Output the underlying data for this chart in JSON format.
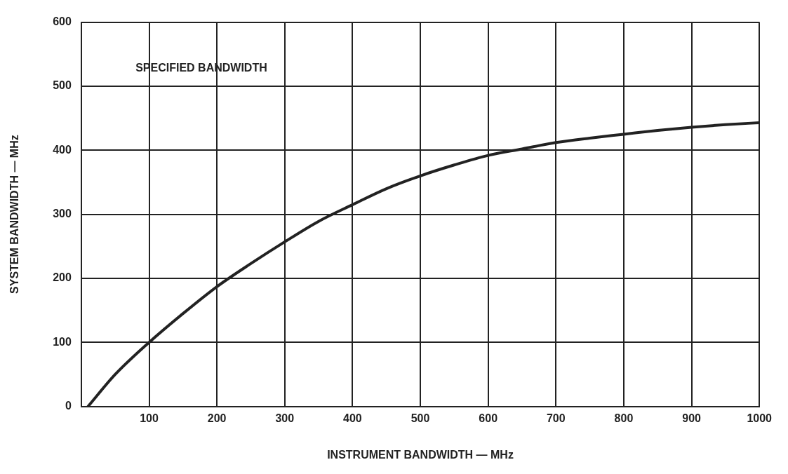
{
  "chart_data": {
    "type": "line",
    "xlabel": "INSTRUMENT BANDWIDTH — MHz",
    "ylabel": "SYSTEM BANDWIDTH — MHz",
    "annotations": [
      "SPECIFIED BANDWIDTH"
    ],
    "x": [
      10,
      50,
      100,
      150,
      200,
      250,
      300,
      350,
      400,
      450,
      500,
      550,
      600,
      650,
      700,
      750,
      800,
      850,
      900,
      950,
      1000
    ],
    "series": [
      {
        "color": "#222222",
        "values": [
          0,
          50,
          100,
          145,
          187,
          223,
          257,
          289,
          315,
          340,
          360,
          377,
          392,
          402,
          412,
          419,
          425,
          431,
          436,
          440,
          443
        ]
      }
    ],
    "xlim": [
      0,
      1000
    ],
    "xticks": [
      {
        "value": 0,
        "label": null
      },
      100,
      200,
      300,
      400,
      500,
      600,
      700,
      800,
      900,
      1000
    ],
    "ylim": [
      0,
      600
    ],
    "yticks": [
      0,
      100,
      200,
      300,
      400,
      500,
      600
    ],
    "grid": true,
    "marker": "none",
    "line_style": "solid",
    "legend": false
  }
}
